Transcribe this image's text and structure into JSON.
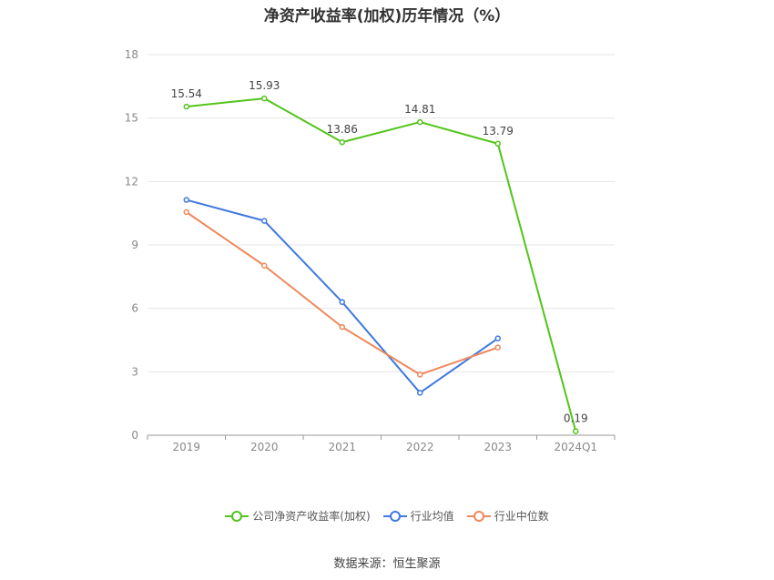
{
  "title": "净资产收益率(加权)历年情况（%）",
  "source": "数据来源：恒生聚源",
  "chart_data": {
    "type": "line",
    "title": "净资产收益率(加权)历年情况（%）",
    "categories": [
      "2019",
      "2020",
      "2021",
      "2022",
      "2023",
      "2024Q1"
    ],
    "ylim": [
      0,
      18
    ],
    "yticks": [
      0,
      3,
      6,
      9,
      12,
      15,
      18
    ],
    "grid": true,
    "legend_position": "bottom",
    "series": [
      {
        "name": "公司净资产收益率(加权)",
        "color": "#52c41a",
        "values": [
          15.54,
          15.93,
          13.86,
          14.81,
          13.79,
          0.19
        ],
        "show_labels": true
      },
      {
        "name": "行业均值",
        "color": "#3f78e0",
        "values": [
          11.13,
          10.14,
          6.3,
          2.01,
          4.58,
          null
        ],
        "show_labels": false
      },
      {
        "name": "行业中位数",
        "color": "#f0875a",
        "values": [
          10.55,
          8.02,
          5.12,
          2.87,
          4.15,
          null
        ],
        "show_labels": false
      }
    ]
  }
}
